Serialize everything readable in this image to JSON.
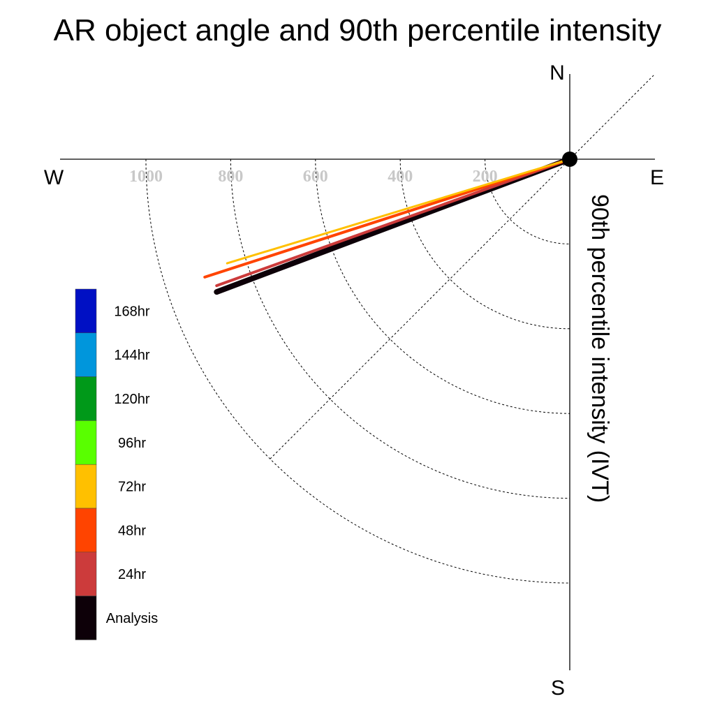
{
  "chart_data": {
    "type": "polar-vector",
    "title": "AR object angle and 90th percentile intensity",
    "radial_label": "90th percentile intensity (IVT)",
    "directions": {
      "north": "N",
      "south": "S",
      "east": "E",
      "west": "W"
    },
    "radial_ticks": [
      200,
      400,
      600,
      800,
      1000
    ],
    "radial_tick_labels": [
      "200",
      "400",
      "600",
      "800",
      "1000"
    ],
    "radial_range": [
      0,
      1000
    ],
    "grid": true,
    "legend_placement": "bottom-left",
    "series": [
      {
        "name": "Analysis",
        "color": "#0d0008",
        "angle_deg_south_of_west": 20.6,
        "intensity": 890,
        "width": 8
      },
      {
        "name": "24hr",
        "color": "#cc3b3b",
        "angle_deg_south_of_west": 19.7,
        "intensity": 885,
        "width": 4
      },
      {
        "name": "48hr",
        "color": "#ff4400",
        "angle_deg_south_of_west": 17.9,
        "intensity": 905,
        "width": 4
      },
      {
        "name": "72hr",
        "color": "#ffc000",
        "angle_deg_south_of_west": 16.9,
        "intensity": 845,
        "width": 3
      }
    ],
    "legend": [
      {
        "label": "168hr",
        "color": "#0010c4"
      },
      {
        "label": "144hr",
        "color": "#0096dc"
      },
      {
        "label": "120hr",
        "color": "#009919"
      },
      {
        "label": "96hr",
        "color": "#59ff00"
      },
      {
        "label": "72hr",
        "color": "#ffc000"
      },
      {
        "label": "48hr",
        "color": "#ff4400"
      },
      {
        "label": "24hr",
        "color": "#cc3b3b"
      },
      {
        "label": "Analysis",
        "color": "#0d0008"
      }
    ]
  }
}
